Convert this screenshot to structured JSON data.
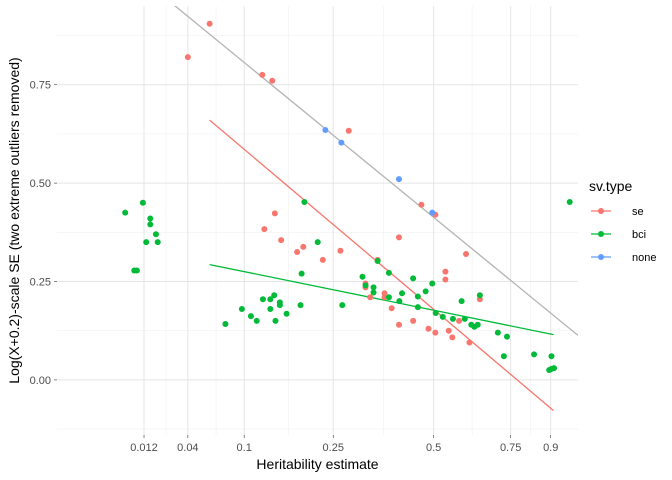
{
  "chart_data": {
    "type": "scatter",
    "xlabel": "Heritability estimate",
    "ylabel": "Log(X+0.2)-scale SE (two extreme outliers removed)",
    "x_scale": "sqrt",
    "xlim": [
      -0.005,
      1.01
    ],
    "ylim": [
      -0.14,
      0.95
    ],
    "x_ticks": [
      0.012,
      0.04,
      0.1,
      0.25,
      0.5,
      0.75,
      0.9
    ],
    "x_tick_labels": [
      "0.012",
      "0.04",
      "0.1",
      "0.25",
      "0.5",
      "0.75",
      "0.9"
    ],
    "y_ticks": [
      0.0,
      0.25,
      0.5,
      0.75
    ],
    "y_tick_labels": [
      "0.00",
      "0.25",
      "0.50",
      "0.75"
    ],
    "grid": true,
    "legend": {
      "title": "sv.type",
      "position": "right",
      "entries": [
        {
          "label": "se",
          "color": "#F8766D"
        },
        {
          "label": "bci",
          "color": "#00BA38"
        },
        {
          "label": "none",
          "color": "#619CFF"
        }
      ]
    },
    "series": [
      {
        "name": "se",
        "color": "#F8766D",
        "points": [
          [
            0.04,
            0.82
          ],
          [
            0.06,
            0.905
          ],
          [
            0.125,
            0.775
          ],
          [
            0.14,
            0.76
          ],
          [
            0.283,
            0.633
          ],
          [
            0.465,
            0.445
          ],
          [
            0.505,
            0.42
          ],
          [
            0.128,
            0.383
          ],
          [
            0.144,
            0.423
          ],
          [
            0.154,
            0.355
          ],
          [
            0.181,
            0.325
          ],
          [
            0.192,
            0.338
          ],
          [
            0.229,
            0.305
          ],
          [
            0.265,
            0.328
          ],
          [
            0.321,
            0.245
          ],
          [
            0.321,
            0.235
          ],
          [
            0.332,
            0.21
          ],
          [
            0.35,
            0.305
          ],
          [
            0.367,
            0.22
          ],
          [
            0.367,
            0.21
          ],
          [
            0.385,
            0.182
          ],
          [
            0.404,
            0.362
          ],
          [
            0.404,
            0.14
          ],
          [
            0.442,
            0.15
          ],
          [
            0.485,
            0.13
          ],
          [
            0.505,
            0.12
          ],
          [
            0.535,
            0.275
          ],
          [
            0.535,
            0.255
          ],
          [
            0.545,
            0.125
          ],
          [
            0.556,
            0.108
          ],
          [
            0.577,
            0.15
          ],
          [
            0.599,
            0.32
          ],
          [
            0.61,
            0.095
          ],
          [
            0.644,
            0.205
          ]
        ]
      },
      {
        "name": "bci",
        "color": "#00BA38",
        "points": [
          [
            0.005,
            0.425
          ],
          [
            0.008,
            0.278
          ],
          [
            0.009,
            0.278
          ],
          [
            0.0115,
            0.45
          ],
          [
            0.013,
            0.35
          ],
          [
            0.015,
            0.41
          ],
          [
            0.015,
            0.395
          ],
          [
            0.018,
            0.37
          ],
          [
            0.019,
            0.35
          ],
          [
            0.077,
            0.142
          ],
          [
            0.097,
            0.18
          ],
          [
            0.109,
            0.162
          ],
          [
            0.117,
            0.15
          ],
          [
            0.126,
            0.205
          ],
          [
            0.137,
            0.205
          ],
          [
            0.137,
            0.18
          ],
          [
            0.143,
            0.215
          ],
          [
            0.145,
            0.15
          ],
          [
            0.152,
            0.19
          ],
          [
            0.152,
            0.197
          ],
          [
            0.163,
            0.168
          ],
          [
            0.187,
            0.19
          ],
          [
            0.189,
            0.27
          ],
          [
            0.194,
            0.452
          ],
          [
            0.219,
            0.35
          ],
          [
            0.269,
            0.19
          ],
          [
            0.314,
            0.262
          ],
          [
            0.321,
            0.24
          ],
          [
            0.34,
            0.235
          ],
          [
            0.34,
            0.222
          ],
          [
            0.35,
            0.302
          ],
          [
            0.378,
            0.272
          ],
          [
            0.378,
            0.21
          ],
          [
            0.405,
            0.2
          ],
          [
            0.412,
            0.22
          ],
          [
            0.442,
            0.258
          ],
          [
            0.455,
            0.212
          ],
          [
            0.455,
            0.185
          ],
          [
            0.477,
            0.225
          ],
          [
            0.496,
            0.245
          ],
          [
            0.506,
            0.17
          ],
          [
            0.527,
            0.16
          ],
          [
            0.558,
            0.155
          ],
          [
            0.585,
            0.2
          ],
          [
            0.595,
            0.155
          ],
          [
            0.616,
            0.14
          ],
          [
            0.626,
            0.135
          ],
          [
            0.637,
            0.14
          ],
          [
            0.644,
            0.215
          ],
          [
            0.705,
            0.12
          ],
          [
            0.726,
            0.06
          ],
          [
            0.737,
            0.11
          ],
          [
            0.836,
            0.065
          ],
          [
            0.894,
            0.025
          ],
          [
            0.903,
            0.028
          ],
          [
            0.903,
            0.06
          ],
          [
            0.913,
            0.03
          ],
          [
            0.976,
            0.452
          ]
        ]
      },
      {
        "name": "none",
        "color": "#619CFF",
        "points": [
          [
            0.234,
            0.635
          ],
          [
            0.267,
            0.603
          ],
          [
            0.404,
            0.51
          ],
          [
            0.496,
            0.425
          ]
        ]
      }
    ],
    "lines": [
      {
        "name": "se",
        "color": "#F8766D",
        "x": [
          0.06,
          0.911
        ],
        "y": [
          0.66,
          -0.078
        ]
      },
      {
        "name": "bci",
        "color": "#00BA38",
        "x": [
          0.06,
          0.911
        ],
        "y": [
          0.293,
          0.115
        ]
      },
      {
        "name": "none",
        "color": "#B3B3B3",
        "x": [
          0.0285,
          1.01
        ],
        "y": [
          0.955,
          0.113
        ]
      }
    ]
  }
}
